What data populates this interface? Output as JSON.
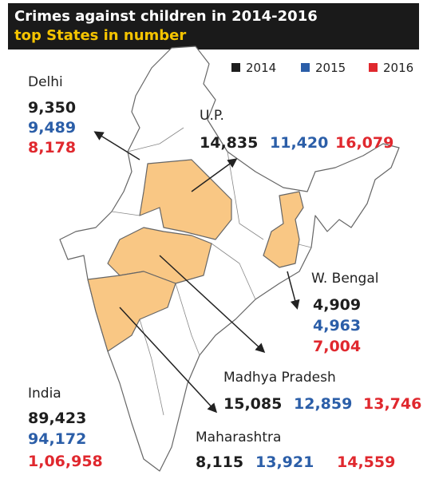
{
  "header": {
    "title": "Crimes against children in 2014-2016",
    "subtitle": "top States in number"
  },
  "legend": [
    {
      "label": "2014",
      "color": "#1e1e1e"
    },
    {
      "label": "2015",
      "color": "#2b5ea8"
    },
    {
      "label": "2016",
      "color": "#e0282e"
    }
  ],
  "regions": [
    {
      "name": "Delhi",
      "values": [
        "9,350",
        "9,489",
        "8,178"
      ]
    },
    {
      "name": "U.P.",
      "values": [
        "14,835",
        "11,420",
        "16,079"
      ]
    },
    {
      "name": "W. Bengal",
      "values": [
        "4,909",
        "4,963",
        "7,004"
      ]
    },
    {
      "name": "Madhya Pradesh",
      "values": [
        "15,085",
        "12,859",
        "13,746"
      ]
    },
    {
      "name": "India",
      "values": [
        "89,423",
        "94,172",
        "1,06,958"
      ]
    },
    {
      "name": "Maharashtra",
      "values": [
        "8,115",
        "13,921",
        "14,559"
      ]
    }
  ]
}
